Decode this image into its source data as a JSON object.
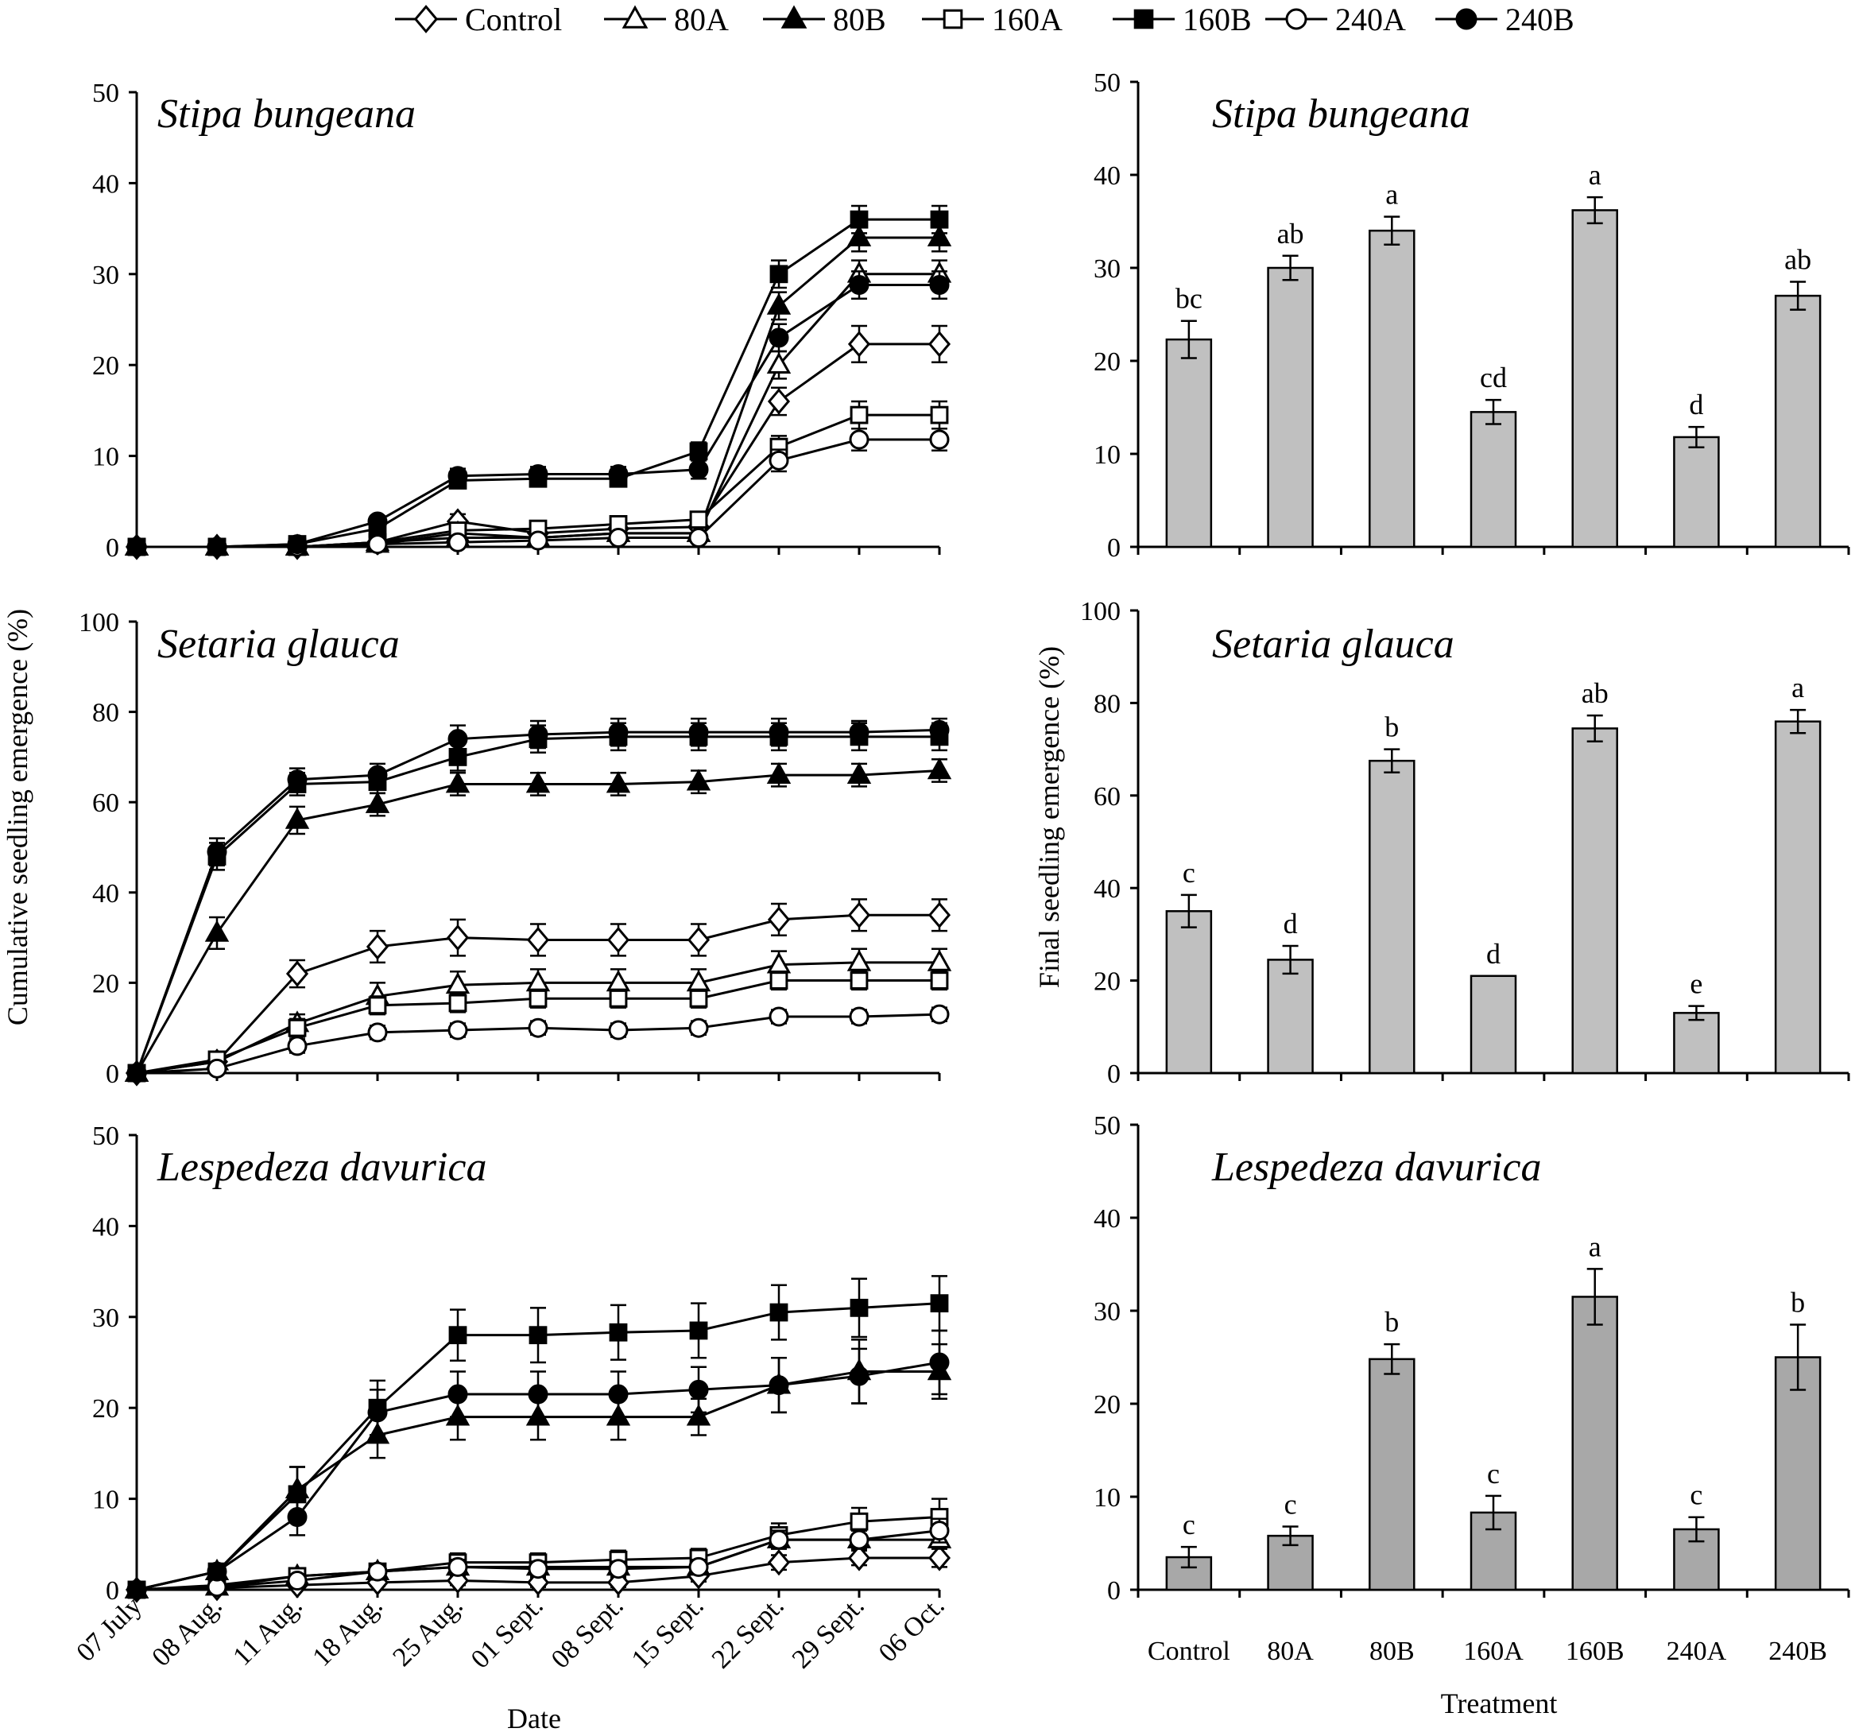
{
  "legend": [
    {
      "name": "Control",
      "marker": "diamond",
      "fill": "open"
    },
    {
      "name": "80A",
      "marker": "triangle",
      "fill": "open"
    },
    {
      "name": "80B",
      "marker": "triangle",
      "fill": "filled"
    },
    {
      "name": "160A",
      "marker": "square",
      "fill": "open"
    },
    {
      "name": "160B",
      "marker": "square",
      "fill": "filled"
    },
    {
      "name": "240A",
      "marker": "circle",
      "fill": "open"
    },
    {
      "name": "240B",
      "marker": "circle",
      "fill": "filled"
    }
  ],
  "colors": {
    "line": "#000000",
    "bar": "#c0c0c0",
    "bar_dark": "#a8a8a8",
    "open_fill": "#ffffff"
  },
  "shared": {
    "left_ylabel": "Cumulative seedling emergence (%)",
    "right_ylabel": "Final seedling emergence (%)",
    "left_xlabel": "Date",
    "right_xlabel": "Treatment",
    "dates": [
      "07 July",
      "08 Aug.",
      "11 Aug.",
      "18 Aug.",
      "25 Aug.",
      "01 Sept.",
      "08 Sept.",
      "15 Sept.",
      "22 Sept.",
      "29 Sept.",
      "06 Oct."
    ],
    "treatments": [
      "Control",
      "80A",
      "80B",
      "160A",
      "160B",
      "240A",
      "240B"
    ]
  },
  "chart_data": [
    {
      "type": "line",
      "title": "Stipa bungeana",
      "xlabel": "",
      "ylabel": "",
      "ylim": [
        0,
        50
      ],
      "yticks": [
        0,
        10,
        20,
        30,
        40,
        50
      ],
      "series": [
        {
          "name": "Control",
          "values": [
            0,
            0,
            0,
            0.5,
            2.8,
            1.5,
            2.0,
            2.2,
            16,
            22.3,
            22.3
          ],
          "errors": [
            0,
            0,
            0,
            0.3,
            0.8,
            0.6,
            0.8,
            0.8,
            1.5,
            2,
            2
          ]
        },
        {
          "name": "80A",
          "values": [
            0,
            0,
            0,
            0.3,
            1.5,
            1.0,
            1.5,
            1.5,
            20,
            30,
            30
          ],
          "errors": [
            0,
            0,
            0,
            0.2,
            0.6,
            0.5,
            0.6,
            0.6,
            1.5,
            1.5,
            1.5
          ]
        },
        {
          "name": "80B",
          "values": [
            0,
            0,
            0,
            0.5,
            1.0,
            1.0,
            1.5,
            1.5,
            26.5,
            34,
            34
          ],
          "errors": [
            0,
            0,
            0,
            0.3,
            0.5,
            0.5,
            0.6,
            0.6,
            1.5,
            1.5,
            1.5
          ]
        },
        {
          "name": "160A",
          "values": [
            0,
            0,
            0,
            0.5,
            1.8,
            2.0,
            2.5,
            3.0,
            11,
            14.5,
            14.5
          ],
          "errors": [
            0,
            0,
            0,
            0.3,
            0.6,
            0.6,
            0.8,
            0.8,
            1.2,
            1.5,
            1.5
          ]
        },
        {
          "name": "160B",
          "values": [
            0,
            0,
            0.3,
            2.0,
            7.3,
            7.5,
            7.5,
            10.5,
            30,
            36,
            36
          ],
          "errors": [
            0,
            0,
            0.2,
            0.5,
            0.8,
            0.8,
            0.8,
            1,
            1.5,
            1.5,
            1.5
          ]
        },
        {
          "name": "240A",
          "values": [
            0,
            0,
            0,
            0.3,
            0.5,
            0.7,
            1.0,
            1.0,
            9.5,
            11.8,
            11.8
          ],
          "errors": [
            0,
            0,
            0,
            0.2,
            0.3,
            0.4,
            0.5,
            0.5,
            1.2,
            1.2,
            1.2
          ]
        },
        {
          "name": "240B",
          "values": [
            0,
            0,
            0.3,
            2.8,
            7.8,
            8.0,
            8.0,
            8.5,
            23,
            28.8,
            28.8
          ],
          "errors": [
            0,
            0,
            0.2,
            0.6,
            0.8,
            0.8,
            0.8,
            1,
            1.5,
            1.5,
            1.5
          ]
        }
      ]
    },
    {
      "type": "line",
      "title": "Setaria glauca",
      "xlabel": "",
      "ylabel": "",
      "ylim": [
        0,
        100
      ],
      "yticks": [
        0,
        20,
        40,
        60,
        80,
        100
      ],
      "series": [
        {
          "name": "Control",
          "values": [
            0,
            2.5,
            22,
            28,
            30,
            29.5,
            29.5,
            29.5,
            34,
            35,
            35
          ],
          "errors": [
            0,
            1,
            3,
            3.5,
            4,
            3.5,
            3.5,
            3.5,
            3.5,
            3.5,
            3.5
          ]
        },
        {
          "name": "80A",
          "values": [
            0,
            2.5,
            11,
            17,
            19.5,
            20,
            20,
            20,
            24,
            24.5,
            24.5
          ],
          "errors": [
            0,
            1,
            2,
            3,
            3,
            3,
            3,
            3,
            3,
            3,
            3
          ]
        },
        {
          "name": "80B",
          "values": [
            0,
            31,
            56,
            59.5,
            64,
            64,
            64,
            64.5,
            66,
            66,
            67
          ],
          "errors": [
            0,
            3.5,
            3,
            2.5,
            2.5,
            2.5,
            2.5,
            2.5,
            2.5,
            2.5,
            2.5
          ]
        },
        {
          "name": "160A",
          "values": [
            0,
            3,
            10,
            15,
            15.5,
            16.5,
            16.5,
            16.5,
            20.5,
            20.5,
            20.5
          ],
          "errors": [
            0,
            1,
            2,
            2,
            2,
            2,
            2,
            2,
            2,
            2,
            2
          ]
        },
        {
          "name": "160B",
          "values": [
            0,
            48,
            64,
            64.5,
            70,
            74,
            74.5,
            74.5,
            74.5,
            74.5,
            74.5
          ],
          "errors": [
            0,
            3,
            2.5,
            2.5,
            3,
            3,
            3,
            3,
            3,
            3,
            3
          ]
        },
        {
          "name": "240A",
          "values": [
            0,
            1,
            6,
            9,
            9.5,
            10,
            9.5,
            10,
            12.5,
            12.5,
            13
          ],
          "errors": [
            0,
            0.5,
            1.5,
            1.5,
            1.5,
            1.5,
            1.5,
            1.5,
            1.5,
            1.5,
            1.5
          ]
        },
        {
          "name": "240B",
          "values": [
            0,
            49,
            65,
            66,
            74,
            75,
            75.5,
            75.5,
            75.5,
            75.5,
            76
          ],
          "errors": [
            0,
            3,
            2.5,
            2.5,
            3,
            3,
            3,
            3,
            3,
            2.5,
            2.5
          ]
        }
      ]
    },
    {
      "type": "line",
      "title": "Lespedeza davurica",
      "xlabel": "",
      "ylabel": "",
      "ylim": [
        0,
        50
      ],
      "yticks": [
        0,
        10,
        20,
        30,
        40,
        50
      ],
      "series": [
        {
          "name": "Control",
          "values": [
            0,
            0.2,
            0.5,
            0.8,
            1.0,
            0.8,
            0.8,
            1.5,
            3.0,
            3.5,
            3.5
          ],
          "errors": [
            0,
            0.2,
            0.3,
            0.4,
            0.5,
            0.5,
            0.5,
            0.6,
            0.8,
            0.8,
            1
          ]
        },
        {
          "name": "80A",
          "values": [
            0,
            0.3,
            1.5,
            2.0,
            2.5,
            2.5,
            2.5,
            2.5,
            5.5,
            5.5,
            5.5
          ],
          "errors": [
            0,
            0.2,
            0.5,
            0.6,
            0.8,
            0.8,
            0.8,
            0.8,
            1,
            1,
            1
          ]
        },
        {
          "name": "80B",
          "values": [
            0,
            2.0,
            11,
            17,
            19,
            19,
            19,
            19,
            22.5,
            24,
            24
          ],
          "errors": [
            0,
            0.5,
            2.5,
            2.5,
            2.5,
            2.5,
            2.5,
            2,
            3,
            3.5,
            3
          ]
        },
        {
          "name": "160A",
          "values": [
            0,
            0.5,
            1.5,
            2.0,
            3.0,
            3.0,
            3.3,
            3.5,
            6.0,
            7.5,
            8.0
          ],
          "errors": [
            0,
            0.3,
            0.6,
            0.8,
            1,
            1,
            1,
            1,
            1.3,
            1.5,
            2
          ]
        },
        {
          "name": "160B",
          "values": [
            0,
            2.0,
            10.5,
            20,
            28,
            28,
            28.3,
            28.5,
            30.5,
            31,
            31.5
          ],
          "errors": [
            0,
            0.5,
            3,
            3,
            2.8,
            3,
            3,
            3,
            3,
            3.2,
            3
          ]
        },
        {
          "name": "240A",
          "values": [
            0,
            0.3,
            1.0,
            2.0,
            2.5,
            2.3,
            2.3,
            2.5,
            5.5,
            5.5,
            6.5
          ],
          "errors": [
            0,
            0.2,
            0.5,
            0.6,
            0.8,
            0.8,
            0.8,
            0.8,
            1,
            1,
            1.3
          ]
        },
        {
          "name": "240B",
          "values": [
            0,
            2.0,
            8.0,
            19.5,
            21.5,
            21.5,
            21.5,
            22,
            22.5,
            23.5,
            25
          ],
          "errors": [
            0,
            0.5,
            2,
            2.5,
            2.5,
            2.5,
            2.5,
            2.5,
            3,
            3,
            3.5
          ]
        }
      ]
    },
    {
      "type": "bar",
      "title": "Stipa bungeana",
      "categories": [
        "Control",
        "80A",
        "80B",
        "160A",
        "160B",
        "240A",
        "240B"
      ],
      "values": [
        22.3,
        30,
        34,
        14.5,
        36.2,
        11.8,
        27
      ],
      "errors": [
        2.0,
        1.3,
        1.5,
        1.3,
        1.4,
        1.1,
        1.5
      ],
      "letters": [
        "bc",
        "ab",
        "a",
        "cd",
        "a",
        "d",
        "ab"
      ],
      "ylim": [
        0,
        50
      ],
      "yticks": [
        0,
        10,
        20,
        30,
        40,
        50
      ]
    },
    {
      "type": "bar",
      "title": "Setaria glauca",
      "categories": [
        "Control",
        "80A",
        "80B",
        "160A",
        "160B",
        "240A",
        "240B"
      ],
      "values": [
        35,
        24.5,
        67.5,
        21,
        74.5,
        13,
        76
      ],
      "errors": [
        3.5,
        3.0,
        2.5,
        0,
        2.8,
        1.5,
        2.5
      ],
      "letters": [
        "c",
        "d",
        "b",
        "d",
        "ab",
        "e",
        "a"
      ],
      "ylim": [
        0,
        100
      ],
      "yticks": [
        0,
        20,
        40,
        60,
        80,
        100
      ]
    },
    {
      "type": "bar",
      "title": "Lespedeza davurica",
      "categories": [
        "Control",
        "80A",
        "80B",
        "160A",
        "160B",
        "240A",
        "240B"
      ],
      "values": [
        3.5,
        5.8,
        24.8,
        8.3,
        31.5,
        6.5,
        25
      ],
      "errors": [
        1.1,
        1.0,
        1.6,
        1.8,
        3.0,
        1.3,
        3.5
      ],
      "letters": [
        "c",
        "c",
        "b",
        "c",
        "a",
        "c",
        "b"
      ],
      "ylim": [
        0,
        50
      ],
      "yticks": [
        0,
        10,
        20,
        30,
        40,
        50
      ]
    }
  ]
}
